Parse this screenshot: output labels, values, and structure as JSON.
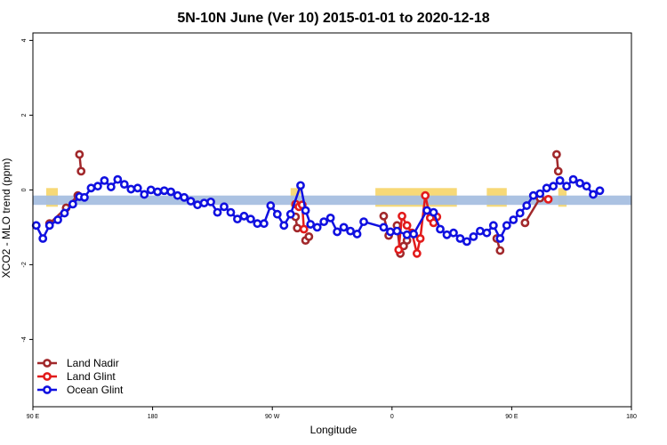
{
  "chart_data": {
    "type": "line",
    "title": "5N-10N June (Ver 10)   2015-01-01 to 2020-12-18",
    "xlabel": "Longitude",
    "ylabel": "XCO2 - MLO trend (ppm)",
    "xlim": [
      0,
      360
    ],
    "ylim": [
      -5.8,
      4.2
    ],
    "x_ticks": [
      {
        "x": 0,
        "label": "90 E"
      },
      {
        "x": 72,
        "label": "180"
      },
      {
        "x": 144,
        "label": "90 W"
      },
      {
        "x": 216,
        "label": "0"
      },
      {
        "x": 288,
        "label": "90 E"
      },
      {
        "x": 360,
        "label": "180"
      }
    ],
    "y_ticks": [
      -4,
      -2,
      0,
      2,
      4
    ],
    "grid": false,
    "legend_position": "bottom-left",
    "band": {
      "y_min": -0.4,
      "y_max": -0.15,
      "color": "#a7bfe0"
    },
    "land_markers": {
      "color": "#f7d977",
      "ranges": [
        [
          8,
          15
        ],
        [
          155,
          161
        ],
        [
          206,
          255
        ],
        [
          273,
          285
        ],
        [
          316,
          321
        ]
      ]
    },
    "series": [
      {
        "name": "Land Nadir",
        "color": "#a1282b",
        "segments": [
          [
            [
              10,
              -0.9
            ],
            [
              20,
              -0.48
            ],
            [
              27,
              -0.15
            ]
          ],
          [
            [
              28,
              0.95
            ],
            [
              29,
              0.5
            ]
          ],
          [
            [
              158,
              -0.72
            ],
            [
              159,
              -1.02
            ]
          ],
          [
            [
              164,
              -1.35
            ],
            [
              166,
              -1.25
            ]
          ],
          [
            [
              211,
              -0.7
            ],
            [
              214,
              -1.22
            ]
          ],
          [
            [
              219,
              -0.95
            ],
            [
              221,
              -1.7
            ],
            [
              223,
              -1.5
            ],
            [
              225,
              -1.35
            ]
          ],
          [
            [
              279,
              -1.3
            ],
            [
              281,
              -1.62
            ]
          ],
          [
            [
              296,
              -0.88
            ],
            [
              305,
              -0.22
            ]
          ],
          [
            [
              315,
              0.95
            ],
            [
              316,
              0.5
            ]
          ]
        ]
      },
      {
        "name": "Land Glint",
        "color": "#e21b1b",
        "segments": [
          [
            [
              158,
              -0.38
            ],
            [
              160,
              -0.45
            ],
            [
              162,
              -0.4
            ],
            [
              163,
              -1.05
            ]
          ],
          [
            [
              220,
              -1.6
            ],
            [
              222,
              -0.7
            ],
            [
              225,
              -0.95
            ],
            [
              228,
              -1.15
            ],
            [
              231,
              -1.7
            ],
            [
              233,
              -1.3
            ],
            [
              236,
              -0.15
            ],
            [
              239,
              -0.75
            ],
            [
              241,
              -0.88
            ],
            [
              243,
              -0.72
            ]
          ],
          [
            [
              310,
              -0.25
            ]
          ]
        ]
      },
      {
        "name": "Ocean Glint",
        "color": "#1010e0",
        "segments": [
          [
            [
              2,
              -0.95
            ],
            [
              6,
              -1.3
            ],
            [
              10,
              -0.95
            ],
            [
              15,
              -0.8
            ],
            [
              19,
              -0.62
            ],
            [
              24,
              -0.38
            ],
            [
              28,
              -0.18
            ],
            [
              31,
              -0.2
            ],
            [
              35,
              0.05
            ],
            [
              39,
              0.1
            ],
            [
              43,
              0.25
            ],
            [
              47,
              0.08
            ],
            [
              51,
              0.28
            ],
            [
              55,
              0.15
            ],
            [
              59,
              0.02
            ],
            [
              63,
              0.05
            ],
            [
              67,
              -0.12
            ],
            [
              71,
              0.0
            ],
            [
              75,
              -0.05
            ],
            [
              79,
              -0.02
            ],
            [
              83,
              -0.05
            ],
            [
              87,
              -0.15
            ],
            [
              91,
              -0.2
            ],
            [
              95,
              -0.3
            ],
            [
              99,
              -0.4
            ],
            [
              103,
              -0.35
            ],
            [
              107,
              -0.32
            ],
            [
              111,
              -0.6
            ],
            [
              115,
              -0.45
            ],
            [
              119,
              -0.6
            ],
            [
              123,
              -0.78
            ],
            [
              127,
              -0.7
            ],
            [
              131,
              -0.78
            ],
            [
              135,
              -0.9
            ],
            [
              139,
              -0.9
            ],
            [
              143,
              -0.42
            ],
            [
              147,
              -0.65
            ],
            [
              151,
              -0.95
            ],
            [
              155,
              -0.65
            ],
            [
              161,
              0.12
            ],
            [
              164,
              -0.55
            ],
            [
              167,
              -0.92
            ],
            [
              171,
              -1.0
            ],
            [
              175,
              -0.85
            ],
            [
              179,
              -0.75
            ],
            [
              183,
              -1.12
            ],
            [
              187,
              -1.0
            ],
            [
              191,
              -1.1
            ],
            [
              195,
              -1.18
            ],
            [
              199,
              -0.85
            ],
            [
              211,
              -1.0
            ],
            [
              215,
              -1.12
            ],
            [
              219,
              -1.1
            ],
            [
              225,
              -1.2
            ],
            [
              229,
              -1.18
            ],
            [
              237,
              -0.55
            ],
            [
              241,
              -0.6
            ],
            [
              245,
              -1.05
            ],
            [
              249,
              -1.2
            ],
            [
              253,
              -1.15
            ],
            [
              257,
              -1.3
            ],
            [
              261,
              -1.38
            ],
            [
              265,
              -1.25
            ],
            [
              269,
              -1.1
            ],
            [
              273,
              -1.15
            ],
            [
              277,
              -0.95
            ],
            [
              281,
              -1.3
            ],
            [
              285,
              -0.95
            ],
            [
              289,
              -0.8
            ],
            [
              293,
              -0.62
            ],
            [
              297,
              -0.42
            ],
            [
              301,
              -0.15
            ],
            [
              305,
              -0.1
            ],
            [
              309,
              0.05
            ],
            [
              313,
              0.1
            ],
            [
              317,
              0.25
            ],
            [
              321,
              0.1
            ],
            [
              325,
              0.28
            ],
            [
              329,
              0.18
            ],
            [
              333,
              0.1
            ],
            [
              337,
              -0.12
            ],
            [
              341,
              -0.02
            ]
          ]
        ]
      }
    ]
  }
}
